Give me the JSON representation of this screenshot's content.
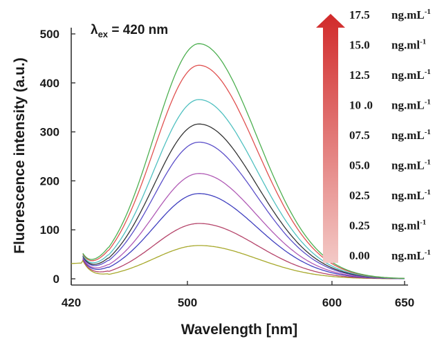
{
  "chart_data": {
    "type": "line",
    "xlabel": "Wavelength [nm]",
    "ylabel": "Fluorescence intensity (a.u.)",
    "xlim": [
      420,
      650
    ],
    "ylim": [
      0,
      500
    ],
    "x_ticks": [
      "420",
      "500",
      "600",
      "650"
    ],
    "y_ticks": [
      "0",
      "100",
      "200",
      "300",
      "400",
      "500"
    ],
    "annotation": {
      "lambda_prefix": "λ",
      "lambda_sub": "ex",
      "lambda_value": " = 420 nm"
    },
    "peak_wavelength": 508,
    "legend_arrow_color": "#c0282c",
    "series": [
      {
        "name": "0.00",
        "unit": "ng.mL",
        "exp": "-1",
        "color": "#a7a82a",
        "peak": 68
      },
      {
        "name": "0.25",
        "unit": "ng.ml",
        "exp": "-1",
        "color": "#b5446a",
        "peak": 113
      },
      {
        "name": "02.5",
        "unit": "ng.mL",
        "exp": "-1",
        "color": "#3f3fbf",
        "peak": 174
      },
      {
        "name": "05.0",
        "unit": "ng.mL",
        "exp": "-1",
        "color": "#b05ab5",
        "peak": 215
      },
      {
        "name": "07.5",
        "unit": "ng.mL",
        "exp": "-1",
        "color": "#5b4fc9",
        "peak": 279
      },
      {
        "name": "10 .0",
        "unit": "ng.mL",
        "exp": "-1",
        "color": "#333333",
        "peak": 316
      },
      {
        "name": "12.5",
        "unit": "ng.mL",
        "exp": "-1",
        "color": "#4fc0c0",
        "peak": 366
      },
      {
        "name": "15.0",
        "unit": "ng.ml",
        "exp": "-1",
        "color": "#e0504f",
        "peak": 436
      },
      {
        "name": "17.5",
        "unit": "ng.mL",
        "exp": "-1",
        "color": "#4caf50",
        "peak": 480
      }
    ]
  }
}
